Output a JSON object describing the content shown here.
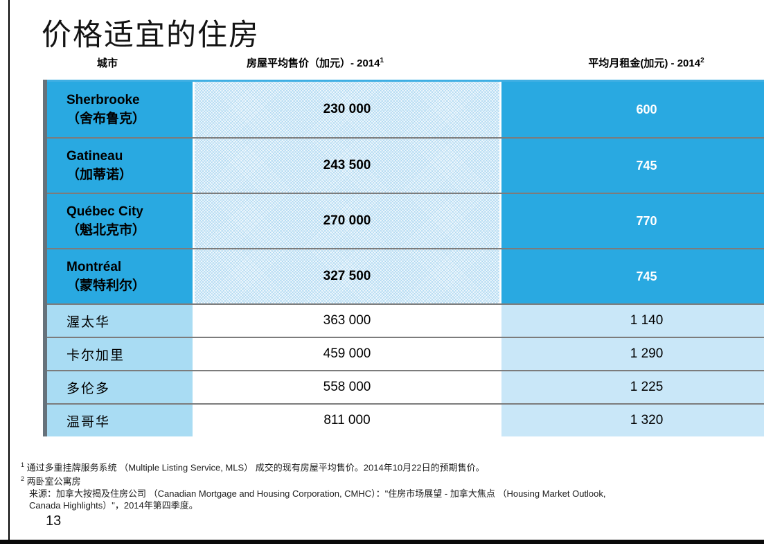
{
  "slide": {
    "title": "价格适宜的住房",
    "page_number": "13"
  },
  "table": {
    "headers": {
      "city": "城市",
      "price_label": "房屋平均售价（加元）- 2014",
      "price_sup": "1",
      "rent_label": "平均月租金(加元) - 2014",
      "rent_sup": "2"
    },
    "rows": [
      {
        "city_latin": "Sherbrooke",
        "city_cn": "（舍布鲁克）",
        "price": "230 000",
        "rent": "600",
        "highlight": true
      },
      {
        "city_latin": "Gatineau",
        "city_cn": "（加蒂诺）",
        "price": "243 500",
        "rent": "745",
        "highlight": true
      },
      {
        "city_latin": "Québec City",
        "city_cn": "（魁北克市）",
        "price": "270 000",
        "rent": "770",
        "highlight": true
      },
      {
        "city_latin": "Montréal",
        "city_cn": "（蒙特利尔）",
        "price": "327 500",
        "rent": "745",
        "highlight": true
      },
      {
        "city_latin": "",
        "city_cn": "渥太华",
        "price": "363 000",
        "rent": "1 140",
        "highlight": false
      },
      {
        "city_latin": "",
        "city_cn": "卡尔加里",
        "price": "459 000",
        "rent": "1 290",
        "highlight": false
      },
      {
        "city_latin": "",
        "city_cn": "多伦多",
        "price": "558 000",
        "rent": "1 225",
        "highlight": false
      },
      {
        "city_latin": "",
        "city_cn": "温哥华",
        "price": "811 000",
        "rent": "1 320",
        "highlight": false
      }
    ]
  },
  "footnotes": {
    "items": [
      {
        "sup": "1",
        "text": "通过多重挂牌服务系统 （Multiple Listing Service, MLS） 成交的现有房屋平均售价。2014年10月22日的预期售价。"
      },
      {
        "sup": "2",
        "text": "两卧室公寓房"
      }
    ],
    "source_line1": "来源：加拿大按揭及住房公司 （Canadian Mortgage and Housing Corporation, CMHC）：\"住房市场展望 -  加拿大焦点 （Housing Market Outlook,",
    "source_line2": "Canada Highlights）\"，2014年第四季度。"
  },
  "colors": {
    "accent_blue": "#29a9e1",
    "light_blue_city": "#a9dcf3",
    "light_blue_rent": "#c9e7f8",
    "hatch_blue": "#d9ecf9",
    "separator_gray": "#7c7c7c",
    "side_bar_gray": "#66727b",
    "border_black": "#000000"
  }
}
